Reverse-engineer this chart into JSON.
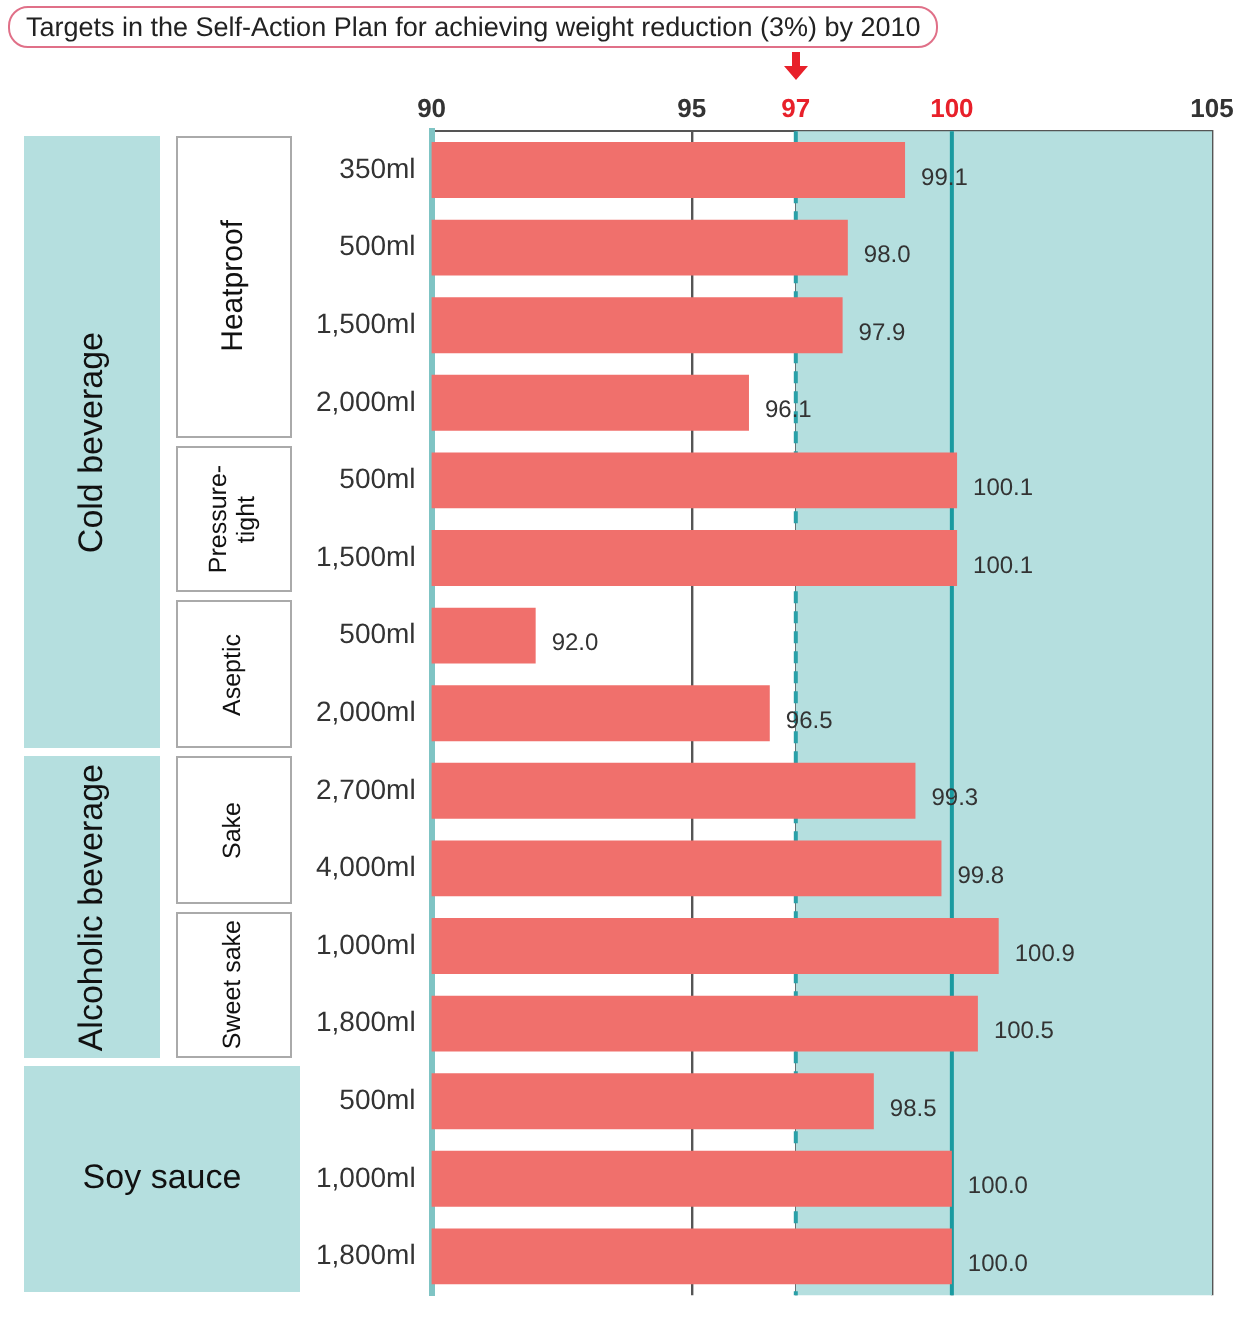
{
  "chart_data": {
    "type": "bar",
    "orientation": "horizontal",
    "title": "Targets in the Self-Action Plan for achieving weight reduction (3%) by 2010",
    "categories": [
      "350ml",
      "500ml",
      "1,500ml",
      "2,000ml",
      "500ml",
      "1,500ml",
      "500ml",
      "2,000ml",
      "2,700ml",
      "4,000ml",
      "1,000ml",
      "1,800ml",
      "500ml",
      "1,000ml",
      "1,800ml"
    ],
    "values": [
      99.1,
      98.0,
      97.9,
      96.1,
      100.1,
      100.1,
      92.0,
      96.5,
      99.3,
      99.8,
      100.9,
      100.5,
      98.5,
      100.0,
      100.0
    ],
    "value_labels": [
      "99.1",
      "98.0",
      "97.9",
      "96.1",
      "100.1",
      "100.1",
      "92.0",
      "96.5",
      "99.3",
      "99.8",
      "100.9",
      "100.5",
      "98.5",
      "100.0",
      "100.0"
    ],
    "color": "#f0706c",
    "xlim": [
      90,
      105
    ],
    "xticks": [
      90,
      95,
      97,
      100,
      105
    ],
    "grid": "x",
    "legend": false,
    "ref_lines": [
      {
        "axis": "x",
        "value": 97,
        "color": "#2aa0a8",
        "line_style": "dashed"
      },
      {
        "axis": "x",
        "value": 100,
        "color": "#1a9aa0",
        "line_style": "solid"
      }
    ],
    "bands": [
      {
        "axis": "x",
        "from": 97,
        "to": 105,
        "color": "#b5dfdf"
      }
    ],
    "annotations": [
      "Cold beverage",
      "Heatproof",
      "Pressure-tight",
      "Aseptic",
      "Alcoholic beverage",
      "Sake",
      "Sweet sake",
      "Soy sauce"
    ]
  }
}
